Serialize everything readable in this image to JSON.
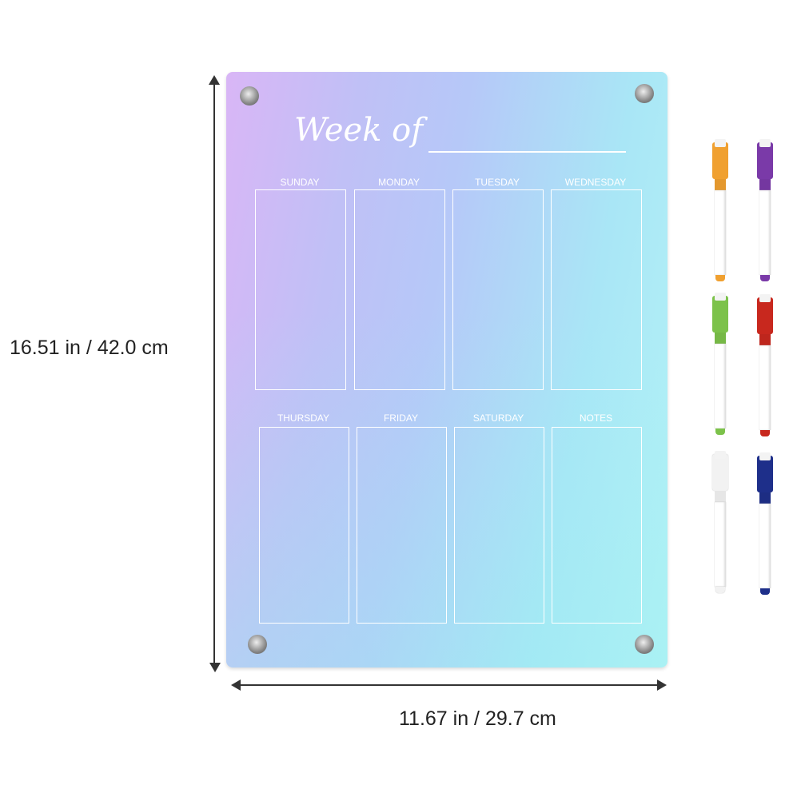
{
  "board": {
    "title": "Week of",
    "days_row1": [
      "SUNDAY",
      "MONDAY",
      "TUESDAY",
      "WEDNESDAY"
    ],
    "days_row2": [
      "THURSDAY",
      "FRIDAY",
      "SATURDAY",
      "NOTES"
    ]
  },
  "dimensions": {
    "height": "16.51 in / 42.0 cm",
    "width": "11.67 in / 29.7 cm"
  },
  "markers": [
    {
      "color": "#f0a030"
    },
    {
      "color": "#7a3aa8"
    },
    {
      "color": "#7cc24a"
    },
    {
      "color": "#c8281e"
    },
    {
      "color": "#f2f2f2"
    },
    {
      "color": "#1e2f8a"
    }
  ]
}
